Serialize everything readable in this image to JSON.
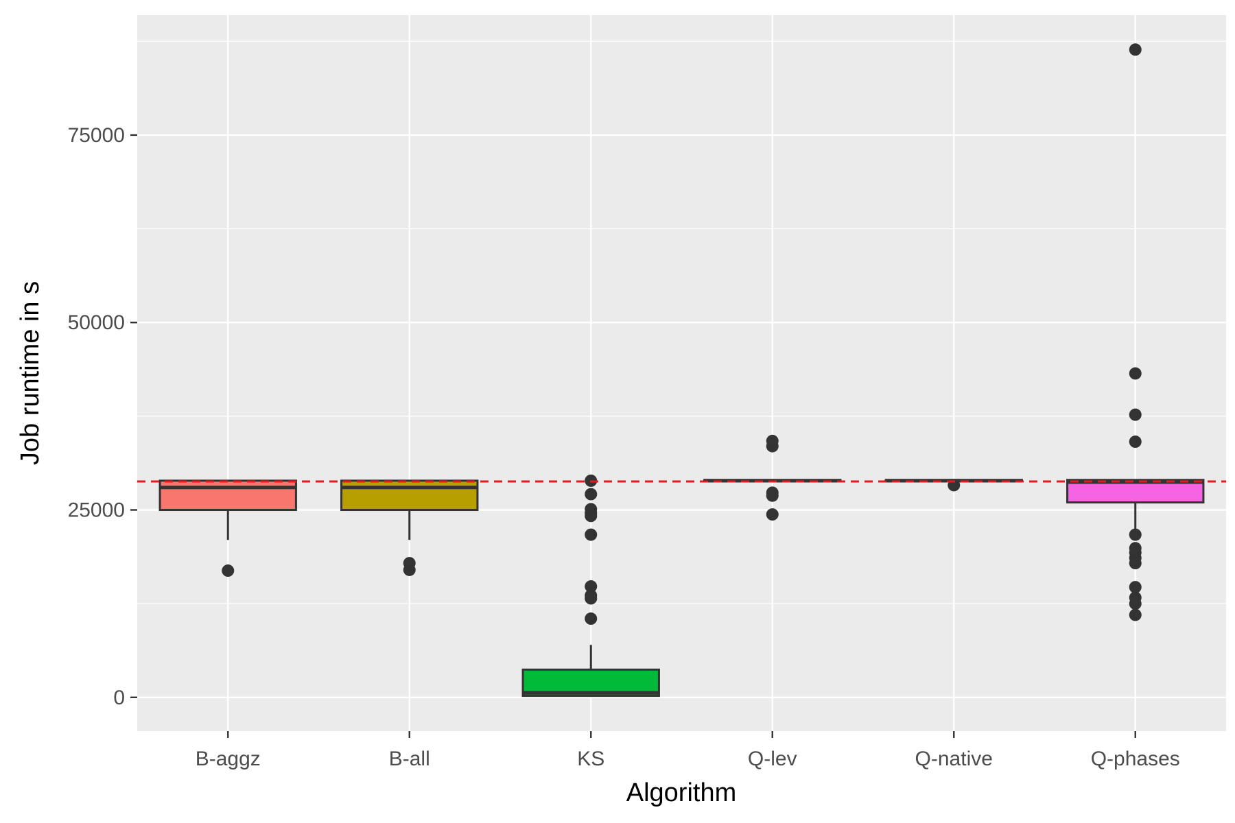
{
  "chart_data": {
    "type": "boxplot",
    "title": "",
    "xlabel": "Algorithm",
    "ylabel": "Job runtime in s",
    "ylim": [
      -4500,
      91000
    ],
    "y_ticks": [
      0,
      25000,
      50000,
      75000
    ],
    "y_tick_labels": [
      "0",
      "25000",
      "50000",
      "75000"
    ],
    "grid": true,
    "legend": "none",
    "reference_line": {
      "y": 28800,
      "color": "#e41a1c",
      "style": "dashed"
    },
    "categories": [
      "B-aggz",
      "B-all",
      "KS",
      "Q-lev",
      "Q-native",
      "Q-phases"
    ],
    "boxes": [
      {
        "name": "B-aggz",
        "fill": "#F8766D",
        "whisker_low": 21000,
        "q1": 25000,
        "median": 28000,
        "q3": 28900,
        "whisker_high": 28900,
        "outliers": [
          16900
        ]
      },
      {
        "name": "B-all",
        "fill": "#B79F00",
        "whisker_low": 21000,
        "q1": 25000,
        "median": 28000,
        "q3": 28900,
        "whisker_high": 28900,
        "outliers": [
          17000,
          17900
        ]
      },
      {
        "name": "KS",
        "fill": "#00BA38",
        "whisker_low": 100,
        "q1": 200,
        "median": 600,
        "q3": 3700,
        "whisker_high": 7000,
        "outliers": [
          10500,
          13200,
          13600,
          14800,
          21700,
          24200,
          24600,
          25100,
          27100,
          28900
        ]
      },
      {
        "name": "Q-lev",
        "fill": "#00BFC4",
        "whisker_low": 28800,
        "q1": 28800,
        "median": 28900,
        "q3": 29000,
        "whisker_high": 29000,
        "outliers": [
          24400,
          26900,
          27300,
          33500,
          34200
        ]
      },
      {
        "name": "Q-native",
        "fill": "#619CFF",
        "whisker_low": 28800,
        "q1": 28800,
        "median": 28900,
        "q3": 29000,
        "whisker_high": 29000,
        "outliers": [
          28300
        ]
      },
      {
        "name": "Q-phases",
        "fill": "#F564E3",
        "whisker_low": 22000,
        "q1": 26000,
        "median": 28700,
        "q3": 29000,
        "whisker_high": 29000,
        "outliers": [
          11000,
          12500,
          13300,
          14700,
          17900,
          18600,
          19300,
          19900,
          21700,
          34100,
          37700,
          43200,
          86400
        ]
      }
    ]
  }
}
